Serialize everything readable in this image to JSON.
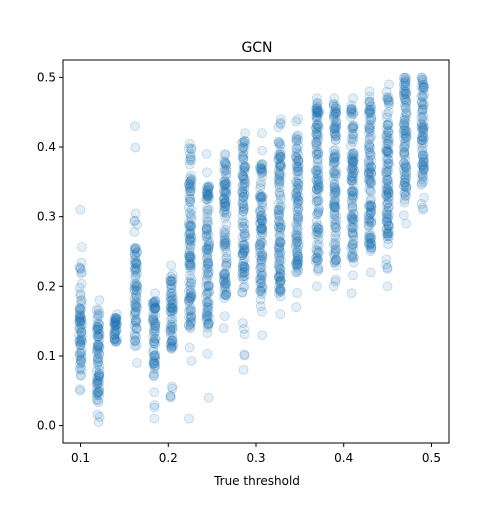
{
  "chart_data": {
    "type": "scatter",
    "title": "GCN",
    "xlabel": "True threshold",
    "ylabel": "",
    "xlim": [
      0.08,
      0.52
    ],
    "ylim": [
      -0.025,
      0.525
    ],
    "xticks": [
      0.1,
      0.2,
      0.3,
      0.4,
      0.5
    ],
    "xtick_labels": [
      "0.1",
      "0.2",
      "0.3",
      "0.4",
      "0.5"
    ],
    "yticks": [
      0.0,
      0.1,
      0.2,
      0.3,
      0.4,
      0.5
    ],
    "ytick_labels": [
      "0.0",
      "0.1",
      "0.2",
      "0.3",
      "0.4",
      "0.5"
    ],
    "grid": false,
    "legend": "none",
    "marker_color": "#1f77b4",
    "marker_alpha": 0.12,
    "columns": [
      {
        "x": 0.1,
        "y_min": 0.05,
        "y_max": 0.31,
        "core_low": 0.07,
        "core_high": 0.19
      },
      {
        "x": 0.12,
        "y_min": 0.005,
        "y_max": 0.18,
        "core_low": 0.03,
        "core_high": 0.17
      },
      {
        "x": 0.14,
        "y_min": 0.12,
        "y_max": 0.16,
        "core_low": 0.12,
        "core_high": 0.155
      },
      {
        "x": 0.163,
        "y_min": 0.09,
        "y_max": 0.43,
        "core_low": 0.12,
        "core_high": 0.26
      },
      {
        "x": 0.184,
        "y_min": 0.01,
        "y_max": 0.19,
        "core_low": 0.07,
        "core_high": 0.18
      },
      {
        "x": 0.204,
        "y_min": 0.04,
        "y_max": 0.23,
        "core_low": 0.11,
        "core_high": 0.22
      },
      {
        "x": 0.225,
        "y_min": 0.01,
        "y_max": 0.405,
        "core_low": 0.14,
        "core_high": 0.36
      },
      {
        "x": 0.245,
        "y_min": 0.04,
        "y_max": 0.39,
        "core_low": 0.14,
        "core_high": 0.35
      },
      {
        "x": 0.265,
        "y_min": 0.14,
        "y_max": 0.39,
        "core_low": 0.18,
        "core_high": 0.38
      },
      {
        "x": 0.286,
        "y_min": 0.08,
        "y_max": 0.42,
        "core_low": 0.19,
        "core_high": 0.41
      },
      {
        "x": 0.306,
        "y_min": 0.13,
        "y_max": 0.42,
        "core_low": 0.19,
        "core_high": 0.38
      },
      {
        "x": 0.327,
        "y_min": 0.16,
        "y_max": 0.44,
        "core_low": 0.19,
        "core_high": 0.41
      },
      {
        "x": 0.347,
        "y_min": 0.17,
        "y_max": 0.44,
        "core_low": 0.22,
        "core_high": 0.42
      },
      {
        "x": 0.37,
        "y_min": 0.2,
        "y_max": 0.47,
        "core_low": 0.22,
        "core_high": 0.46
      },
      {
        "x": 0.39,
        "y_min": 0.2,
        "y_max": 0.47,
        "core_low": 0.23,
        "core_high": 0.46
      },
      {
        "x": 0.41,
        "y_min": 0.19,
        "y_max": 0.47,
        "core_low": 0.24,
        "core_high": 0.46
      },
      {
        "x": 0.43,
        "y_min": 0.22,
        "y_max": 0.48,
        "core_low": 0.25,
        "core_high": 0.47
      },
      {
        "x": 0.45,
        "y_min": 0.2,
        "y_max": 0.49,
        "core_low": 0.26,
        "core_high": 0.48
      },
      {
        "x": 0.47,
        "y_min": 0.29,
        "y_max": 0.5,
        "core_low": 0.32,
        "core_high": 0.5
      },
      {
        "x": 0.49,
        "y_min": 0.31,
        "y_max": 0.5,
        "core_low": 0.35,
        "core_high": 0.5
      }
    ],
    "clusters": [
      {
        "x": 0.225,
        "y": 0.39,
        "count": 8
      }
    ]
  }
}
